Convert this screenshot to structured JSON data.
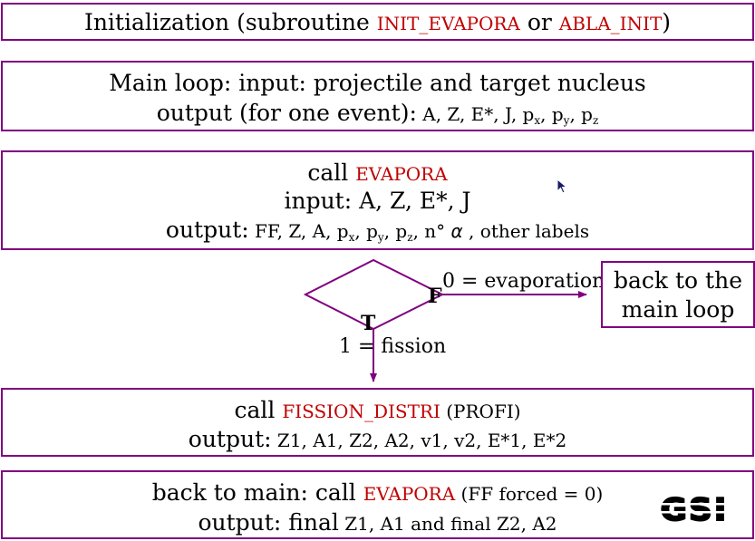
{
  "box1": {
    "prefix": "Initialization (subroutine ",
    "sub_a": "INIT_EVAPORA",
    "joiner": " or ",
    "sub_b": "ABLA_INIT",
    "suffix": ")"
  },
  "box2": {
    "line1": "Main loop: input: projectile and target nucleus",
    "line2_lead": "output (for one event):",
    "line2_vars": " A, Z, E*, J, p",
    "sub_x": "x",
    "sep1": ", p",
    "sub_y": "y",
    "sep2": ", p",
    "sub_z": "z"
  },
  "box3": {
    "call": "call ",
    "routine": "EVAPORA",
    "input": "input: A, Z, E*, J",
    "out_lead": "output:",
    "out_vars": " FF, Z, A, p",
    "sub_x": "x",
    "sep1": ", p",
    "sub_y": "y",
    "sep2": ", p",
    "sub_z": "z",
    "n_alpha": ", n° ",
    "alpha": "α",
    "rest": " , other labels"
  },
  "decision": {
    "false_mark": "F",
    "true_mark": "T",
    "false_label": "0 = evaporation",
    "true_label": "1 = fission"
  },
  "back_box": {
    "line1": "back to the",
    "line2": "main loop"
  },
  "box4": {
    "call": "call ",
    "routine": "FISSION_DISTRI",
    "extra": " (PROFI)",
    "out_lead": "output:",
    "out_vars": " Z1, A1, Z2, A2, v1, v2, E*1, E*2"
  },
  "box5": {
    "lead": "back to main: call ",
    "routine": "EVAPORA",
    "extra": " (FF forced = 0)",
    "out_lead": "output: final",
    "out_a": " Z1, A1 ",
    "and": " and  final",
    "out_b": " Z2, A2"
  },
  "logo": {
    "text": "GSI"
  },
  "colors": {
    "border": "#800080",
    "routine": "#c00000",
    "text": "#000000"
  }
}
